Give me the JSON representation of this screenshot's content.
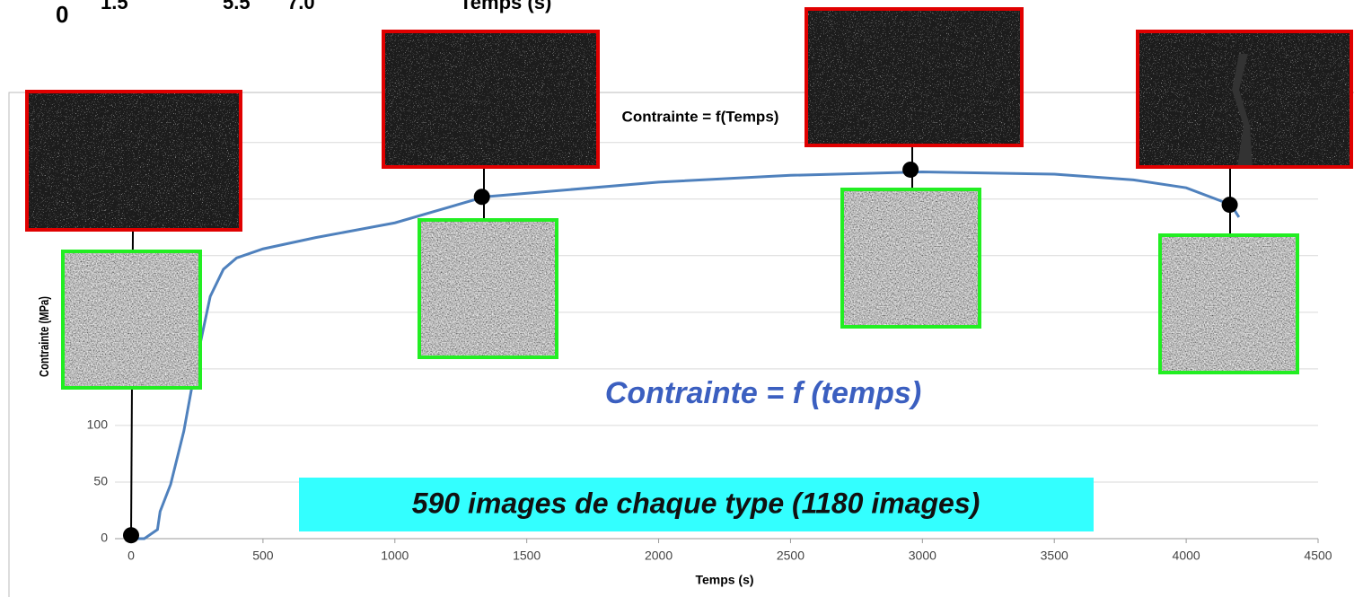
{
  "top_fragments": [
    "0",
    "1.5",
    "5.5",
    "7.0",
    "Temps (s)"
  ],
  "chart_data": {
    "type": "line",
    "title": "Contrainte = f(Temps)",
    "x_label": "Temps (s)",
    "y_label": "Contrainte (MPa)",
    "x": [
      0,
      50,
      100,
      110,
      150,
      200,
      250,
      300,
      350,
      400,
      500,
      700,
      1000,
      1340,
      2000,
      2500,
      3000,
      3500,
      3800,
      4000,
      4170,
      4200
    ],
    "series": [
      {
        "color": "#4f81bd",
        "values": [
          0,
          0,
          8,
          24,
          48,
          95,
          159,
          214,
          238,
          248,
          256,
          266,
          279,
          302,
          315,
          321,
          324,
          322,
          317,
          310,
          295,
          284
        ]
      }
    ],
    "markers": {
      "x": [
        0,
        1330,
        2955,
        4165
      ],
      "values": [
        3,
        302,
        326,
        295
      ],
      "color": "#000000"
    },
    "xlim": [
      0,
      4500
    ],
    "xticks": [
      0,
      500,
      1000,
      1500,
      2000,
      2500,
      3000,
      3500,
      4000,
      4500
    ],
    "ylim": [
      0,
      395
    ],
    "yticks": [
      0,
      50,
      100,
      150,
      200,
      250,
      300,
      350
    ],
    "grid": true,
    "annotations": [
      "Contrainte = f (temps)",
      "590 images de chaque type (1180 images)"
    ]
  }
}
